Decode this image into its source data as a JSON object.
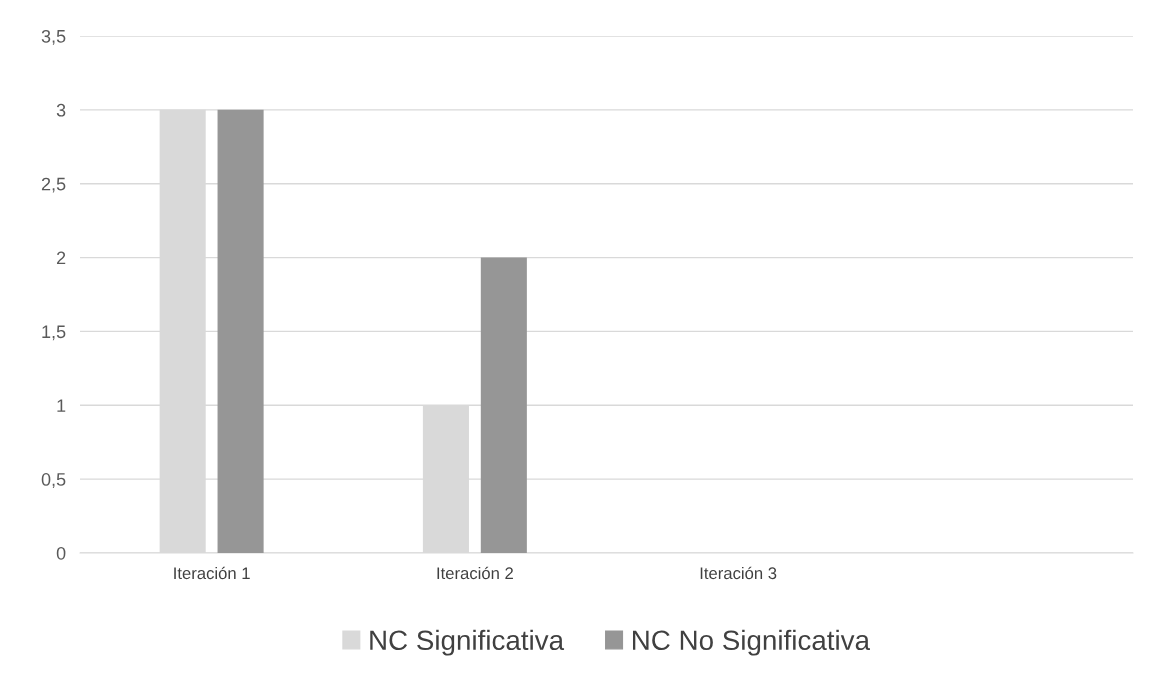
{
  "chart_data": {
    "type": "bar",
    "categories": [
      "Iteración 1",
      "Iteración 2",
      "Iteración 3",
      null
    ],
    "series": [
      {
        "name": "NC Significativa",
        "color": "#d9d9d9",
        "values": [
          3,
          1,
          0,
          0
        ]
      },
      {
        "name": "NC No Significativa",
        "color": "#969696",
        "values": [
          3,
          2,
          0,
          0
        ]
      }
    ],
    "ylim": [
      0,
      3.5
    ],
    "yticks": [
      0,
      {
        "value": 0.5,
        "label": "0,5"
      },
      1,
      {
        "value": 1.5,
        "label": "1,5"
      },
      2,
      {
        "value": 2.5,
        "label": "2,5"
      },
      3,
      {
        "value": 3.5,
        "label": "3,5"
      }
    ],
    "grid": "y",
    "legend": "bottom"
  }
}
